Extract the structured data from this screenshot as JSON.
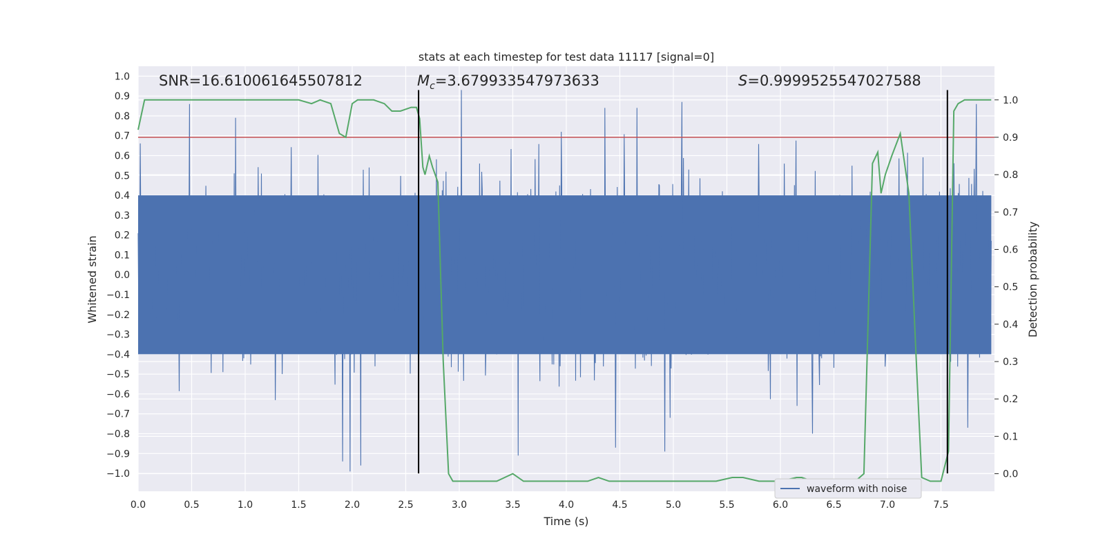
{
  "chart_data": {
    "type": "line",
    "title": "stats at each timestep for test data 11117 [signal=0]",
    "xlabel": "Time (s)",
    "ylabel": "Whitened strain",
    "ylabel_right": "Detection probability",
    "xlim": [
      0.0,
      8.0
    ],
    "ylim": [
      -1.09,
      1.05
    ],
    "ylim_right": [
      -0.047,
      1.09
    ],
    "grid": true,
    "x_ticks": [
      "0.0",
      "0.5",
      "1.0",
      "1.5",
      "2.0",
      "2.5",
      "3.0",
      "3.5",
      "4.0",
      "4.5",
      "5.0",
      "5.5",
      "6.0",
      "6.5",
      "7.0",
      "7.5"
    ],
    "y_ticks": [
      "1.0",
      "0.9",
      "0.8",
      "0.7",
      "0.6",
      "0.5",
      "0.4",
      "0.3",
      "0.2",
      "0.1",
      "0.0",
      "-0.1",
      "-0.2",
      "-0.3",
      "-0.4",
      "-0.5",
      "-0.6",
      "-0.7",
      "-0.8",
      "-0.9",
      "-1.0"
    ],
    "y_ticks_right": [
      "1.0",
      "0.9",
      "0.8",
      "0.7",
      "0.6",
      "0.5",
      "0.4",
      "0.3",
      "0.2",
      "0.1",
      "0.0"
    ],
    "annotations": {
      "snr": "SNR=16.610061645507812",
      "mc_symbol": "M",
      "mc_sub": "c",
      "mc_value": "=3.679933547973633",
      "s_symbol": "S",
      "s_value": "=0.9999525547027588"
    },
    "legend": {
      "label": "waveform with noise",
      "placement": "lower-right"
    },
    "threshold_line": {
      "y_right": 0.9,
      "color": "#c44e52"
    },
    "vertical_lines": [
      2.62,
      7.56
    ],
    "waveform": {
      "name": "waveform with noise",
      "color": "#4c72b0",
      "typical_range": [
        -0.4,
        0.4
      ],
      "notable_peaks": [
        {
          "x": 0.48,
          "y": 0.86
        },
        {
          "x": 0.91,
          "y": 0.79
        },
        {
          "x": 3.02,
          "y": 0.93
        },
        {
          "x": 4.36,
          "y": 0.84
        },
        {
          "x": 4.66,
          "y": 0.84
        },
        {
          "x": 5.08,
          "y": 0.87
        },
        {
          "x": 7.83,
          "y": 0.86
        },
        {
          "x": 1.98,
          "y": -0.99
        },
        {
          "x": 1.91,
          "y": -0.94
        },
        {
          "x": 2.08,
          "y": -0.96
        },
        {
          "x": 3.55,
          "y": -0.91
        },
        {
          "x": 4.46,
          "y": -0.87
        },
        {
          "x": 4.92,
          "y": -0.89
        },
        {
          "x": 6.3,
          "y": -0.8
        },
        {
          "x": 7.75,
          "y": -0.77
        }
      ]
    },
    "detection_probability": {
      "color": "#55a868",
      "x": [
        0.0,
        0.06,
        0.3,
        0.6,
        0.9,
        1.2,
        1.5,
        1.62,
        1.7,
        1.8,
        1.88,
        1.94,
        2.0,
        2.05,
        2.2,
        2.3,
        2.37,
        2.45,
        2.55,
        2.6,
        2.63,
        2.66,
        2.68,
        2.72,
        2.75,
        2.8,
        2.85,
        2.9,
        2.94,
        3.0,
        3.1,
        3.35,
        3.5,
        3.6,
        4.0,
        4.2,
        4.3,
        4.4,
        4.6,
        5.0,
        5.4,
        5.55,
        5.65,
        5.8,
        6.0,
        6.15,
        6.2,
        6.3,
        6.5,
        6.7,
        6.78,
        6.86,
        6.91,
        6.94,
        6.98,
        7.04,
        7.12,
        7.2,
        7.27,
        7.32,
        7.4,
        7.5,
        7.57,
        7.62,
        7.66,
        7.72,
        7.8,
        7.97
      ],
      "y": [
        0.92,
        1.0,
        1.0,
        1.0,
        1.0,
        1.0,
        1.0,
        0.99,
        1.0,
        0.99,
        0.91,
        0.9,
        0.99,
        1.0,
        1.0,
        0.99,
        0.97,
        0.97,
        0.98,
        0.98,
        0.95,
        0.82,
        0.8,
        0.85,
        0.82,
        0.78,
        0.3,
        0.0,
        -0.02,
        -0.02,
        -0.02,
        -0.02,
        0.0,
        -0.02,
        -0.02,
        -0.02,
        -0.01,
        -0.02,
        -0.02,
        -0.02,
        -0.02,
        -0.01,
        -0.01,
        -0.02,
        -0.02,
        -0.01,
        -0.01,
        -0.02,
        -0.02,
        -0.02,
        0.0,
        0.83,
        0.86,
        0.75,
        0.8,
        0.85,
        0.91,
        0.75,
        0.3,
        -0.01,
        -0.02,
        -0.02,
        0.06,
        0.97,
        0.99,
        1.0,
        1.0,
        1.0
      ]
    }
  }
}
